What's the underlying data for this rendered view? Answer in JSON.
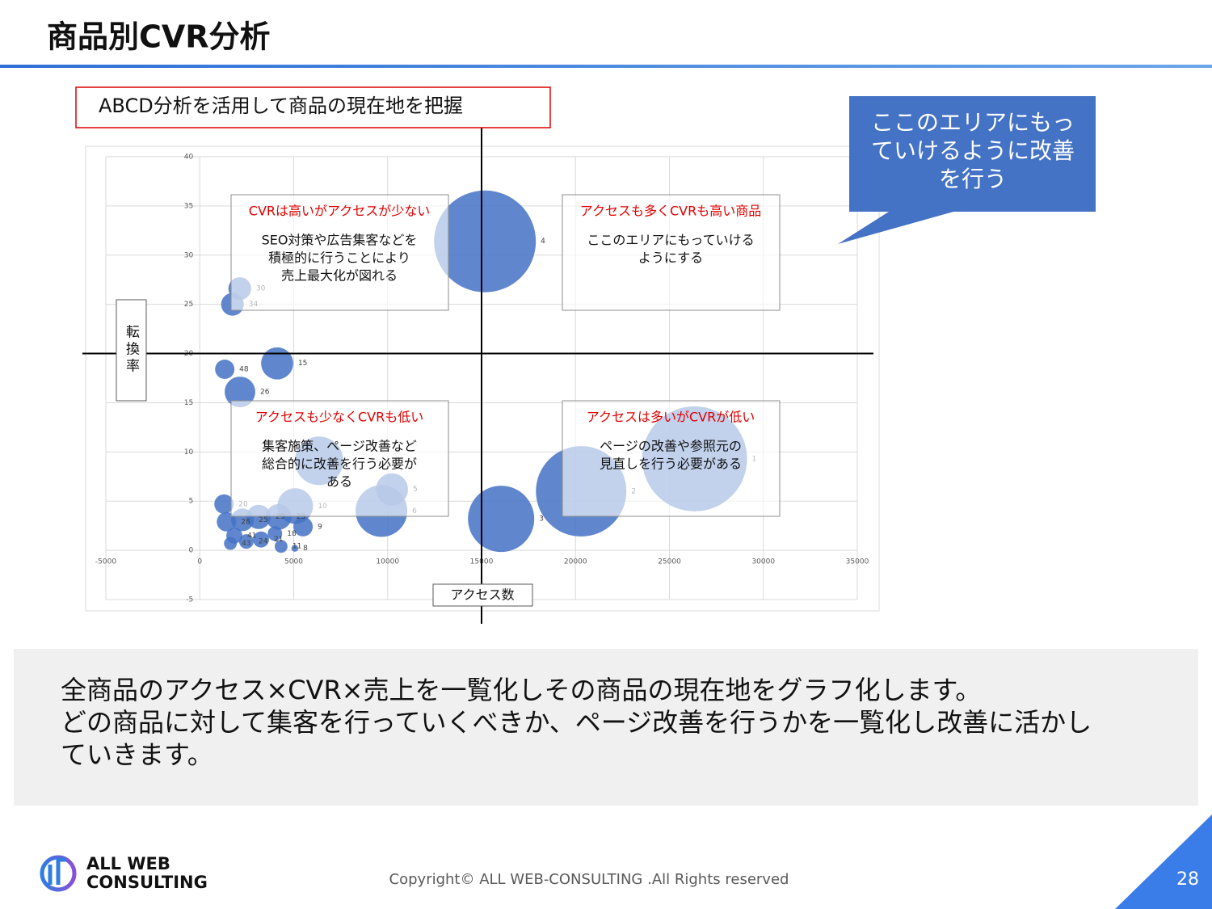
{
  "header": {
    "title": "商品別CVR分析"
  },
  "chart_data": {
    "type": "bubble",
    "title": "ABCD分析を活用して商品の現在地を把握",
    "x_label": "アクセス数",
    "y_label": "転換率",
    "xlim": [
      -5000,
      35000
    ],
    "ylim": [
      -5,
      40
    ],
    "xticks": [
      -5000,
      0,
      5000,
      10000,
      15000,
      20000,
      25000,
      30000,
      35000
    ],
    "yticks": [
      -5,
      0,
      5,
      10,
      15,
      20,
      25,
      30,
      35,
      40
    ],
    "grid": true,
    "quadrant_split": {
      "x": 15000,
      "y": 20
    },
    "series": [
      {
        "color": "#4472c4",
        "x": [
          26340,
          20300,
          16040,
          15180,
          10230,
          9670,
          6350,
          5080,
          4120,
          2140,
          1330,
          2130,
          1740,
          5500,
          5060,
          4330,
          1290,
          3130,
          4200,
          2270,
          1420,
          2480,
          3260,
          4000,
          1840,
          1630
        ],
        "values": [
          9.3,
          6.0,
          3.2,
          31.4,
          6.2,
          4.0,
          9.1,
          4.5,
          19.0,
          16.1,
          18.4,
          26.6,
          25.0,
          2.4,
          0.2,
          0.4,
          4.7,
          3.4,
          3.4,
          3.1,
          2.9,
          0.9,
          1.1,
          1.7,
          1.5,
          0.7
        ],
        "sizes": [
          469,
          348,
          187,
          441,
          44,
          114,
          100,
          54,
          44,
          40,
          16,
          22,
          22,
          16,
          2,
          7,
          16,
          25,
          28,
          22,
          16,
          9,
          11,
          9,
          11,
          7
        ],
        "labels": [
          "1",
          "2",
          "3",
          "4",
          "5",
          "6",
          null,
          "10",
          "15",
          "26",
          "48",
          "30",
          "34",
          "9",
          "8",
          "11",
          "20",
          "29",
          "23",
          "25",
          "28",
          "24",
          "21",
          "18",
          "41",
          "43"
        ]
      }
    ],
    "quadrants": [
      {
        "title": "CVRは高いがアクセスが少ない",
        "lines": [
          "SEO対策や広告集客などを",
          "積極的に行うことにより",
          "売上最大化が図れる"
        ]
      },
      {
        "title": "アクセスも多くCVRも高い商品",
        "lines": [
          "ここのエリアにもっていける",
          "ようにする"
        ]
      },
      {
        "title": "アクセスも少なくCVRも低い",
        "lines": [
          "集客施策、ページ改善など",
          "総合的に改善を行う必要が",
          "ある"
        ]
      },
      {
        "title": "アクセスは多いがCVRが低い",
        "lines": [
          "ページの改善や参照元の",
          "見直しを行う必要がある"
        ]
      }
    ],
    "callout": [
      "ここのエリアにもっ",
      "ていけるように改善",
      "を行う"
    ]
  },
  "summary": [
    "全商品のアクセス×CVR×売上を一覧化しその商品の現在地をグラフ化します。",
    "どの商品に対して集客を行っていくべきか、ページ改善を行うかを一覧化し改善に活かし",
    "ていきます。"
  ],
  "footer": {
    "logo": [
      "ALL WEB",
      "CONSULTING"
    ],
    "copyright": "Copyright© ALL WEB-CONSULTING .All Rights reserved",
    "page": "28"
  }
}
